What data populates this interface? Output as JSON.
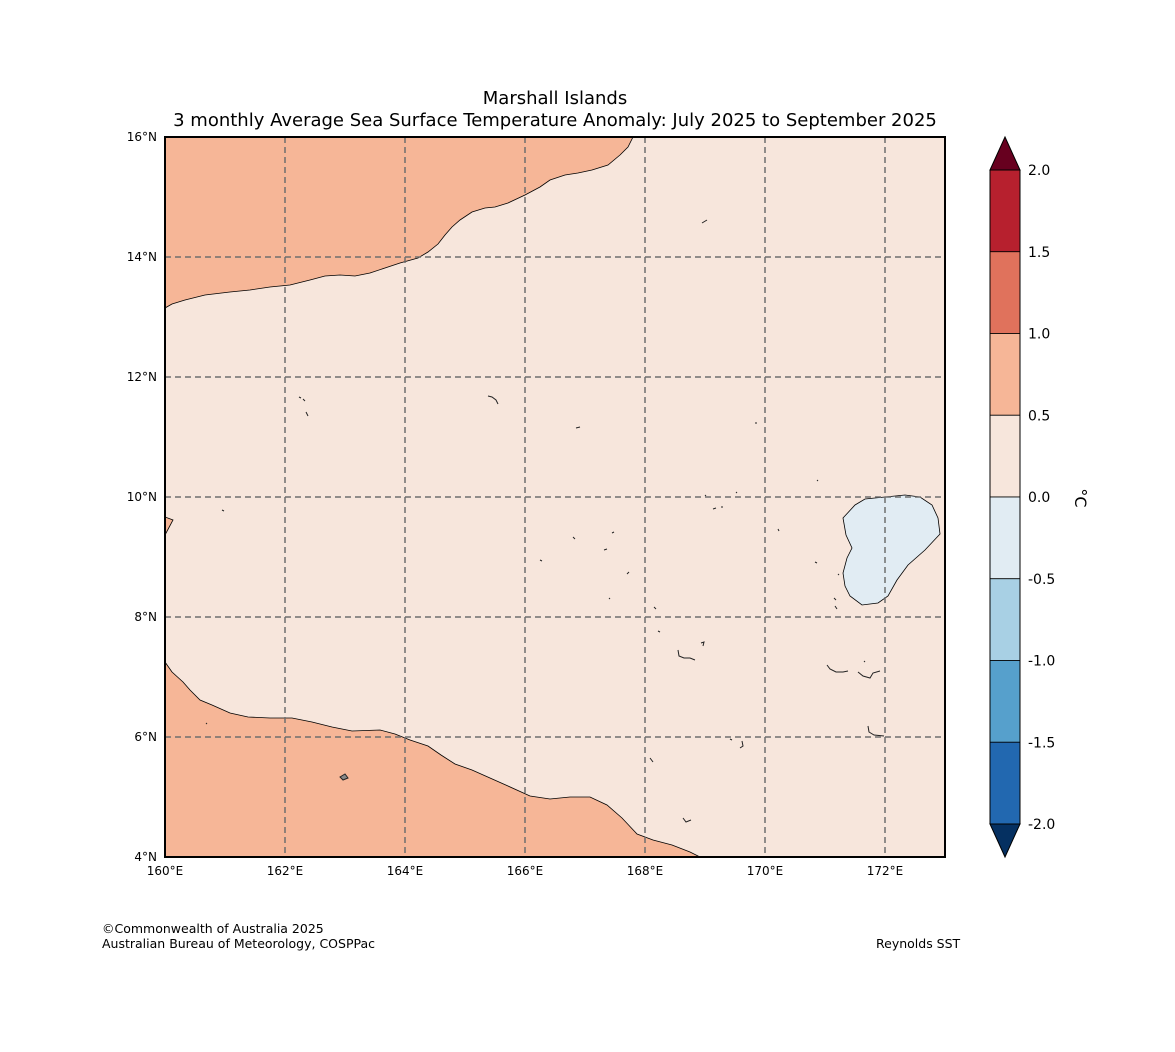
{
  "title": "Marshall Islands",
  "subtitle": "3 monthly Average Sea Surface Temperature Anomaly: July 2025 to September 2025",
  "map": {
    "lon_range": [
      160,
      173
    ],
    "lat_range": [
      4,
      16
    ],
    "lon_ticks": [
      {
        "value": 160,
        "label": "160°E"
      },
      {
        "value": 162,
        "label": "162°E"
      },
      {
        "value": 164,
        "label": "164°E"
      },
      {
        "value": 166,
        "label": "166°E"
      },
      {
        "value": 168,
        "label": "168°E"
      },
      {
        "value": 170,
        "label": "170°E"
      },
      {
        "value": 172,
        "label": "172°E"
      }
    ],
    "lat_ticks": [
      {
        "value": 16,
        "label": "16°N"
      },
      {
        "value": 14,
        "label": "14°N"
      },
      {
        "value": 12,
        "label": "12°N"
      },
      {
        "value": 10,
        "label": "10°N"
      },
      {
        "value": 8,
        "label": "8°N"
      },
      {
        "value": 6,
        "label": "6°N"
      },
      {
        "value": 4,
        "label": "4°N"
      }
    ],
    "background_color": "#f7e6dc",
    "warm_color": "#f6b697",
    "cool_color": "#e1ecf3"
  },
  "colorbar": {
    "unit_label": "°C",
    "levels": [
      {
        "value": 2.0,
        "label": "2.0"
      },
      {
        "value": 1.5,
        "label": "1.5"
      },
      {
        "value": 1.0,
        "label": "1.0"
      },
      {
        "value": 0.5,
        "label": "0.5"
      },
      {
        "value": 0.0,
        "label": "0.0"
      },
      {
        "value": -0.5,
        "label": "-0.5"
      },
      {
        "value": -1.0,
        "label": "-1.0"
      },
      {
        "value": -1.5,
        "label": "-1.5"
      },
      {
        "value": -2.0,
        "label": "-2.0"
      }
    ],
    "bins": [
      {
        "range": [
          1.5,
          2.0
        ],
        "color": "#b7202e"
      },
      {
        "range": [
          1.0,
          1.5
        ],
        "color": "#e0725c"
      },
      {
        "range": [
          0.5,
          1.0
        ],
        "color": "#f6b697"
      },
      {
        "range": [
          0.0,
          0.5
        ],
        "color": "#f7e6dc"
      },
      {
        "range": [
          -0.5,
          0.0
        ],
        "color": "#e1ecf3"
      },
      {
        "range": [
          -1.0,
          -0.5
        ],
        "color": "#a8d0e4"
      },
      {
        "range": [
          -1.5,
          -1.0
        ],
        "color": "#56a0cc"
      },
      {
        "range": [
          -2.0,
          -1.5
        ],
        "color": "#2268b0"
      }
    ],
    "over_color": "#67001f",
    "under_color": "#053061"
  },
  "footer": {
    "copyright": "©Commonwealth of Australia 2025",
    "agency": "Australian Bureau of Meteorology, COSPPac",
    "source": "Reynolds SST"
  }
}
